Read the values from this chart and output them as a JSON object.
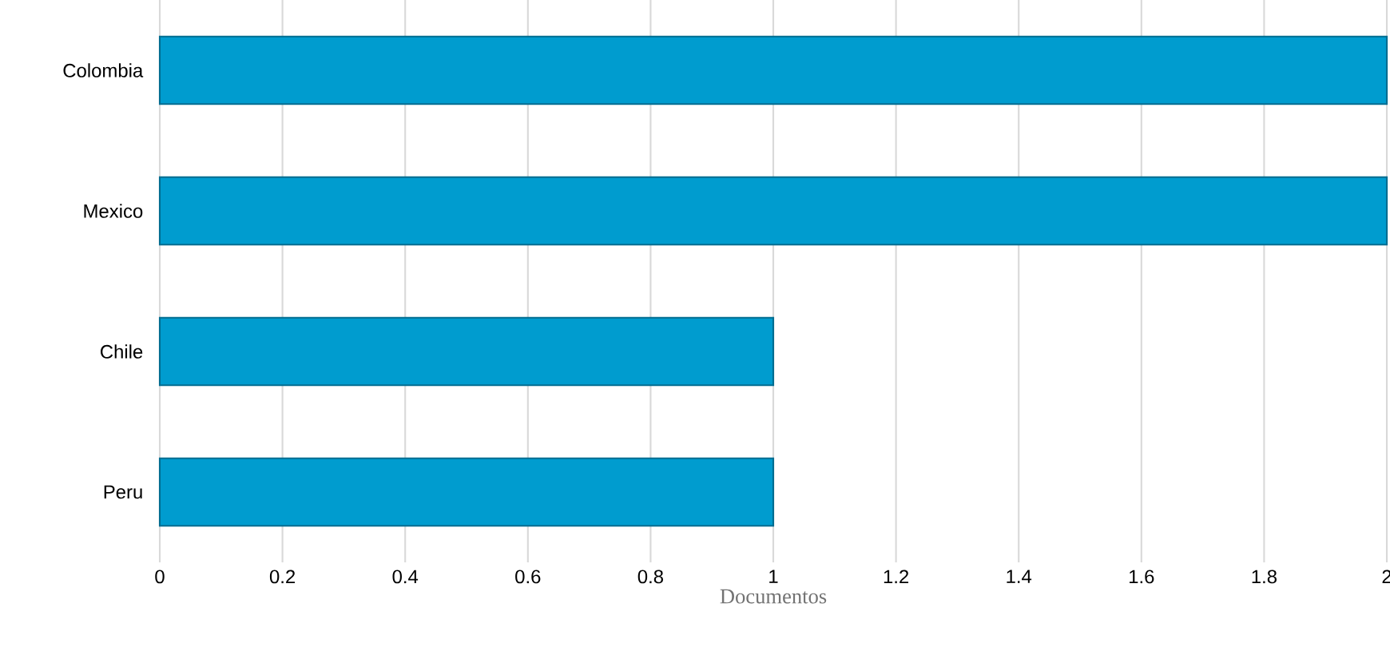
{
  "chart_data": {
    "type": "bar",
    "orientation": "horizontal",
    "xlabel": "Documentos",
    "categories": [
      "Colombia",
      "Mexico",
      "Chile",
      "Peru"
    ],
    "values": [
      2,
      2,
      1,
      1
    ],
    "color": "#009ccf",
    "xlim": [
      0,
      2
    ],
    "xticks": [
      0,
      0.2,
      0.4,
      0.6,
      0.8,
      1,
      1.2,
      1.4,
      1.6,
      1.8,
      2
    ],
    "grid": "x"
  }
}
